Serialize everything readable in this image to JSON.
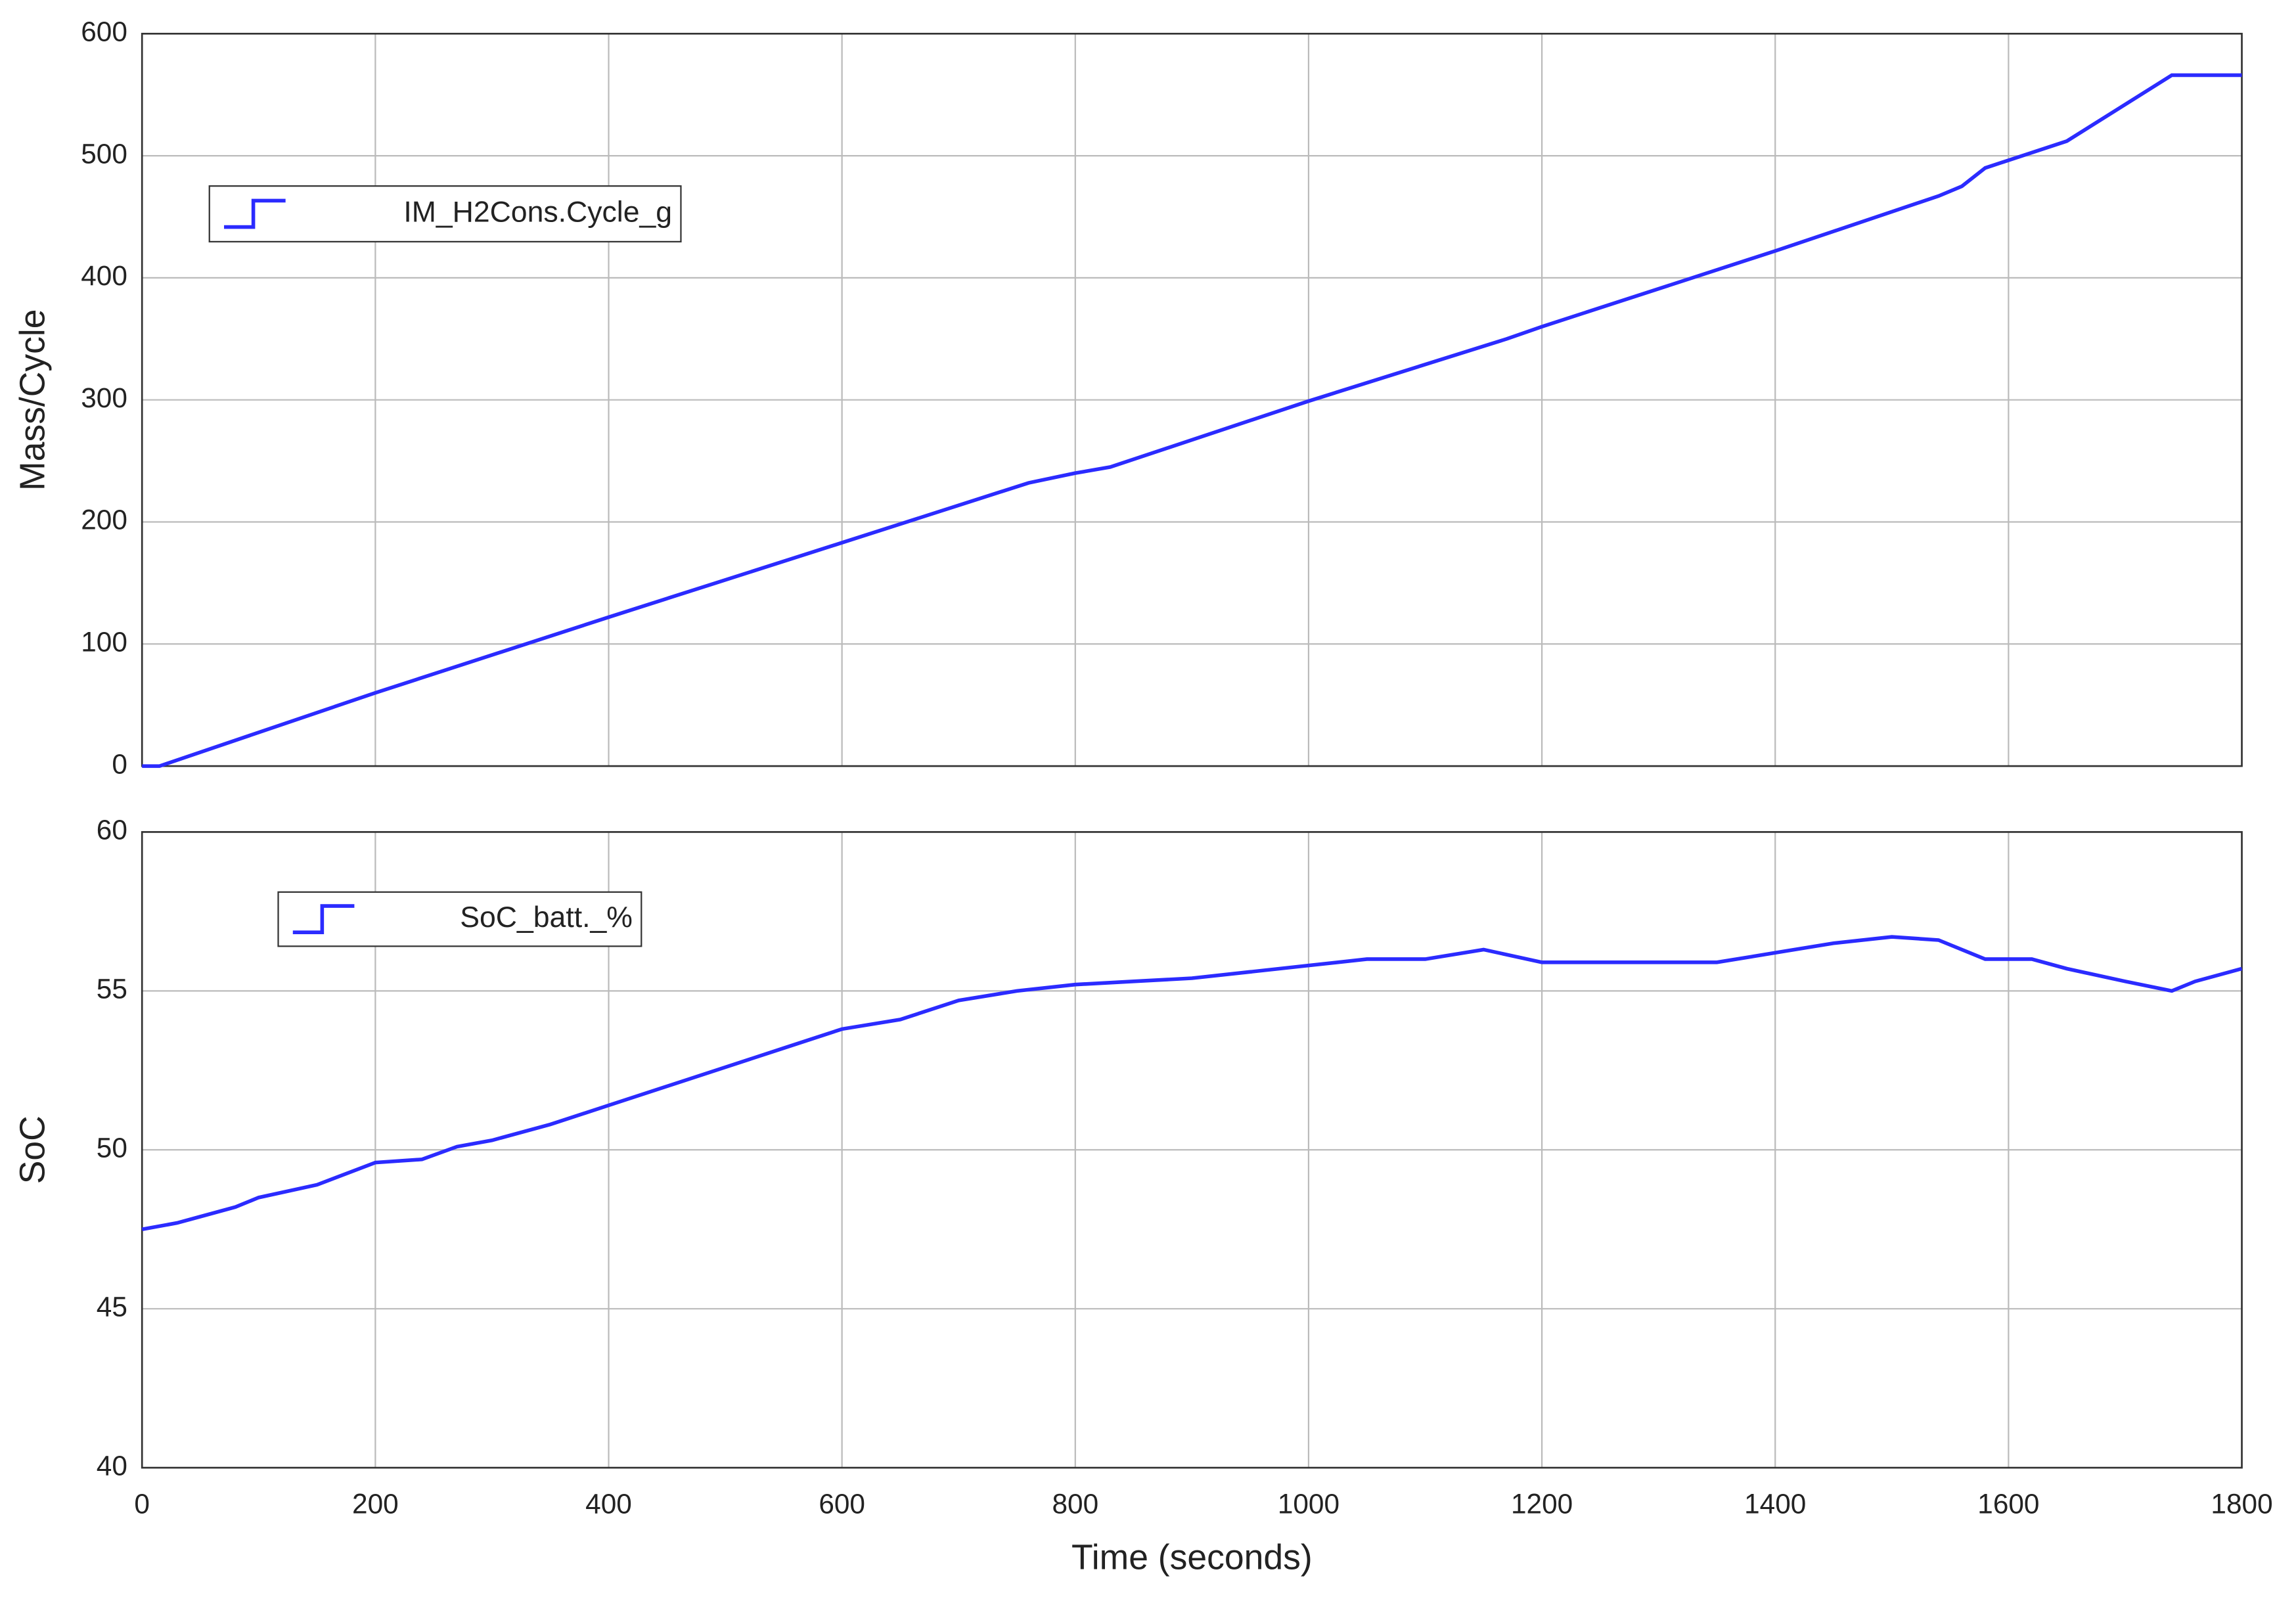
{
  "chart_data": [
    {
      "type": "line",
      "ylabel": "Mass/Cycle",
      "xlim": [
        0,
        1800
      ],
      "xticks": [
        0,
        200,
        400,
        600,
        800,
        1000,
        1200,
        1400,
        1600,
        1800
      ],
      "show_xtick_labels": false,
      "ylim": [
        0,
        600
      ],
      "yticks": [
        0,
        100,
        200,
        300,
        400,
        500,
        600
      ],
      "grid": true,
      "series": [
        {
          "name": "IM_H2Cons.Cycle_g",
          "color": "#2b2bff",
          "x": [
            0,
            15,
            200,
            400,
            600,
            760,
            800,
            830,
            1000,
            1170,
            1200,
            1400,
            1540,
            1560,
            1580,
            1650,
            1740,
            1800
          ],
          "values": [
            0,
            0,
            60,
            122,
            183,
            232,
            240,
            245,
            299,
            350,
            360,
            422,
            467,
            475,
            490,
            512,
            566,
            566
          ]
        }
      ]
    },
    {
      "type": "line",
      "ylabel": "SoC",
      "xlabel": "Time (seconds)",
      "xlim": [
        0,
        1800
      ],
      "xticks": [
        0,
        200,
        400,
        600,
        800,
        1000,
        1200,
        1400,
        1600,
        1800
      ],
      "show_xtick_labels": true,
      "ylim": [
        40,
        60
      ],
      "yticks": [
        40,
        45,
        50,
        55,
        60
      ],
      "grid": true,
      "series": [
        {
          "name": "SoC_batt._%",
          "color": "#2b2bff",
          "x": [
            0,
            30,
            50,
            80,
            100,
            150,
            200,
            240,
            270,
            300,
            350,
            400,
            450,
            500,
            550,
            600,
            650,
            700,
            750,
            800,
            850,
            900,
            950,
            1000,
            1050,
            1100,
            1150,
            1200,
            1250,
            1300,
            1350,
            1400,
            1450,
            1500,
            1540,
            1580,
            1620,
            1650,
            1700,
            1740,
            1760,
            1790,
            1800
          ],
          "values": [
            47.5,
            47.7,
            47.9,
            48.2,
            48.5,
            48.9,
            49.6,
            49.7,
            50.1,
            50.3,
            50.8,
            51.4,
            52.0,
            52.6,
            53.2,
            53.8,
            54.1,
            54.7,
            55.0,
            55.2,
            55.3,
            55.4,
            55.6,
            55.8,
            56.0,
            56.0,
            56.3,
            55.9,
            55.9,
            55.9,
            55.9,
            56.2,
            56.5,
            56.7,
            56.6,
            56.0,
            56.0,
            55.7,
            55.3,
            55.0,
            55.3,
            55.6,
            55.7
          ]
        }
      ]
    }
  ]
}
